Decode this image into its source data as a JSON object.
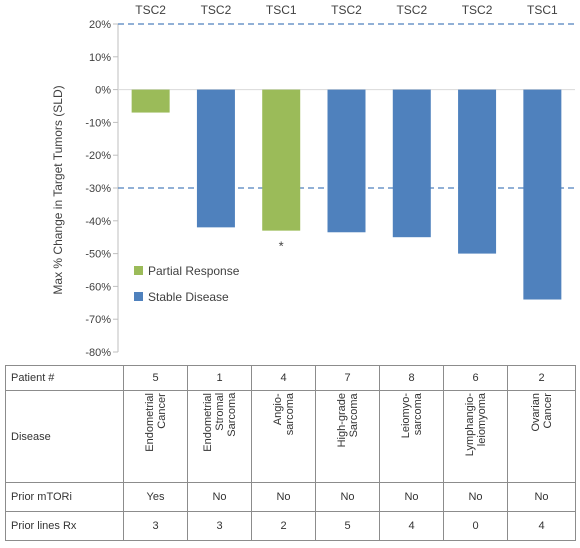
{
  "chart_data": {
    "type": "bar",
    "ylabel": "Max % Change  in Target Tumors (SLD)",
    "ylim": [
      -80,
      20
    ],
    "yticks": [
      20,
      10,
      0,
      -10,
      -20,
      -30,
      -40,
      -50,
      -60,
      -70,
      -80
    ],
    "ytick_labels": [
      "20%",
      "10%",
      "0%",
      "-10%",
      "-20%",
      "-30%",
      "-40%",
      "-50%",
      "-60%",
      "-70%",
      "-80%"
    ],
    "reference_lines": [
      20,
      -30
    ],
    "gene_labels": [
      "TSC2",
      "TSC2",
      "TSC1",
      "TSC2",
      "TSC2",
      "TSC2",
      "TSC1"
    ],
    "values": [
      -7,
      -42,
      -43,
      -43.5,
      -45,
      -50,
      -64
    ],
    "response": [
      "Partial Response",
      "Stable Disease",
      "Partial Response",
      "Stable Disease",
      "Stable Disease",
      "Stable Disease",
      "Stable Disease"
    ],
    "annotations": [
      {
        "bar_index": 2,
        "text": "*"
      }
    ],
    "legend": {
      "placement": "lower-left",
      "entries": [
        {
          "name": "Partial Response",
          "color": "#9bbb59"
        },
        {
          "name": "Stable Disease",
          "color": "#4f81bd"
        }
      ]
    },
    "colors": {
      "Partial Response": "#9bbb59",
      "Stable Disease": "#4f81bd",
      "reference_line": "#4f81bd"
    }
  },
  "table": {
    "row_labels": {
      "patient": "Patient #",
      "disease": "Disease",
      "mtor": "Prior mTORi",
      "lines": "Prior lines Rx"
    },
    "patient": [
      "5",
      "1",
      "4",
      "7",
      "8",
      "6",
      "2"
    ],
    "disease": [
      "Endometrial\nCancer",
      "Endometrial\nStromal\nSarcoma",
      "Angio-\nsarcoma",
      "High-grade\nSarcoma",
      "Leiomyo-\nsarcoma",
      "Lymphangio-\nleiomyoma",
      "Ovarian\nCancer"
    ],
    "prior_mtori": [
      "Yes",
      "No",
      "No",
      "No",
      "No",
      "No",
      "No"
    ],
    "prior_lines": [
      "3",
      "3",
      "2",
      "5",
      "4",
      "0",
      "4"
    ]
  }
}
